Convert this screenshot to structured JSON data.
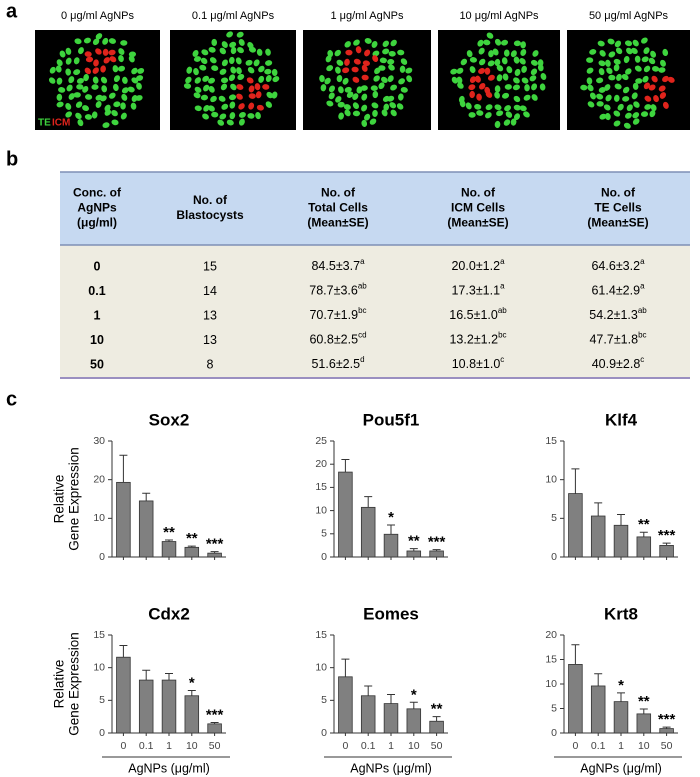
{
  "panel_labels": [
    "a",
    "b",
    "c"
  ],
  "images": {
    "labels": [
      "0 μg/ml AgNPs",
      "0.1 μg/ml AgNPs",
      "1 μg/ml AgNPs",
      "10 μg/ml AgNPs",
      "50 μg/ml AgNPs"
    ],
    "legend": [
      "TE",
      "ICM"
    ]
  },
  "table": {
    "header": [
      [
        "Conc. of",
        "AgNPs",
        "(μg/ml)"
      ],
      [
        "No. of",
        "Blastocysts"
      ],
      [
        "No. of",
        "Total Cells",
        "(Mean±SE)"
      ],
      [
        "No. of",
        "ICM Cells",
        "(Mean±SE)"
      ],
      [
        "No. of",
        "TE Cells",
        "(Mean±SE)"
      ]
    ],
    "rows": [
      [
        "0",
        "15",
        {
          "text": "84.5±3.7",
          "sup": "a"
        },
        {
          "text": "20.0±1.2",
          "sup": "a"
        },
        {
          "text": "64.6±3.2",
          "sup": "a"
        }
      ],
      [
        "0.1",
        "14",
        {
          "text": "78.7±3.6",
          "sup": "ab"
        },
        {
          "text": "17.3±1.1",
          "sup": "a"
        },
        {
          "text": "61.4±2.9",
          "sup": "a"
        }
      ],
      [
        "1",
        "13",
        {
          "text": "70.7±1.9",
          "sup": "bc"
        },
        {
          "text": "16.5±1.0",
          "sup": "ab"
        },
        {
          "text": "54.2±1.3",
          "sup": "ab"
        }
      ],
      [
        "10",
        "13",
        {
          "text": "60.8±2.5",
          "sup": "cd"
        },
        {
          "text": "13.2±1.2",
          "sup": "bc"
        },
        {
          "text": "47.7±1.8",
          "sup": "bc"
        }
      ],
      [
        "50",
        "8",
        {
          "text": "51.6±2.5",
          "sup": "d"
        },
        {
          "text": "10.8±1.0",
          "sup": "c"
        },
        {
          "text": "40.9±2.8",
          "sup": "c"
        }
      ]
    ]
  },
  "chart_data": [
    {
      "type": "bar",
      "title": "Sox2",
      "y_label": [
        "Relative",
        "Gene Expression"
      ],
      "color": "#808080",
      "values": [
        19.3,
        14.5,
        4.0,
        2.5,
        1.0
      ],
      "errors": [
        7.0,
        2.0,
        0.4,
        0.3,
        0.4
      ],
      "annotations": [
        null,
        null,
        "**",
        "**",
        "***"
      ],
      "ylim": [
        0,
        30
      ],
      "yticks": [
        0,
        10,
        20,
        30
      ]
    },
    {
      "type": "bar",
      "title": "Pou5f1",
      "color": "#808080",
      "values": [
        18.3,
        10.7,
        4.9,
        1.3,
        1.3
      ],
      "errors": [
        2.7,
        2.3,
        2.0,
        0.5,
        0.3
      ],
      "annotations": [
        null,
        null,
        "*",
        "**",
        "***"
      ],
      "ylim": [
        0,
        25
      ],
      "yticks": [
        0,
        5,
        10,
        15,
        20,
        25
      ]
    },
    {
      "type": "bar",
      "title": "Klf4",
      "color": "#808080",
      "values": [
        8.2,
        5.3,
        4.1,
        2.6,
        1.5
      ],
      "errors": [
        3.2,
        1.7,
        1.4,
        0.6,
        0.3
      ],
      "annotations": [
        null,
        null,
        null,
        "**",
        "***"
      ],
      "ylim": [
        0,
        15
      ],
      "yticks": [
        0,
        5,
        10,
        15
      ]
    },
    {
      "type": "bar",
      "title": "Cdx2",
      "y_label": [
        "Relative",
        "Gene Expression"
      ],
      "color": "#808080",
      "categories": [
        "0",
        "0.1",
        "1",
        "10",
        "50"
      ],
      "x_label": "AgNPs (μg/ml)",
      "values": [
        11.6,
        8.1,
        8.1,
        5.7,
        1.4
      ],
      "errors": [
        1.8,
        1.5,
        1.0,
        0.8,
        0.2
      ],
      "annotations": [
        null,
        null,
        null,
        "*",
        "***"
      ],
      "ylim": [
        0,
        15
      ],
      "yticks": [
        0,
        5,
        10,
        15
      ]
    },
    {
      "type": "bar",
      "title": "Eomes",
      "color": "#808080",
      "categories": [
        "0",
        "0.1",
        "1",
        "10",
        "50"
      ],
      "x_label": "AgNPs (μg/ml)",
      "values": [
        8.6,
        5.7,
        4.5,
        3.7,
        1.8
      ],
      "errors": [
        2.7,
        1.5,
        1.4,
        1.0,
        0.7
      ],
      "annotations": [
        null,
        null,
        null,
        "*",
        "**"
      ],
      "ylim": [
        0,
        15
      ],
      "yticks": [
        0,
        5,
        10,
        15
      ]
    },
    {
      "type": "bar",
      "title": "Krt8",
      "color": "#808080",
      "categories": [
        "0",
        "0.1",
        "1",
        "10",
        "50"
      ],
      "x_label": "AgNPs (μg/ml)",
      "values": [
        14.0,
        9.6,
        6.4,
        3.9,
        0.9
      ],
      "errors": [
        4.0,
        2.5,
        1.8,
        1.0,
        0.3
      ],
      "annotations": [
        null,
        null,
        "*",
        "**",
        "***"
      ],
      "ylim": [
        0,
        20
      ],
      "yticks": [
        0,
        5,
        10,
        15,
        20
      ]
    }
  ]
}
